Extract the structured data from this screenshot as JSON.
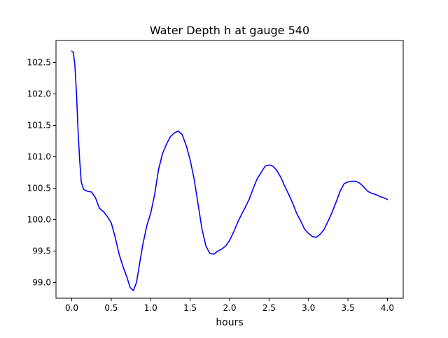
{
  "chart_data": {
    "type": "line",
    "title": "Water Depth h at gauge 540",
    "xlabel": "hours",
    "ylabel": "",
    "xlim": [
      -0.2,
      4.2
    ],
    "ylim": [
      98.75,
      102.85
    ],
    "grid": false,
    "legend": "none",
    "x_ticks": [
      {
        "value": 0.0,
        "label": "0.0"
      },
      {
        "value": 0.5,
        "label": "0.5"
      },
      {
        "value": 1.0,
        "label": "1.0"
      },
      {
        "value": 1.5,
        "label": "1.5"
      },
      {
        "value": 2.0,
        "label": "2.0"
      },
      {
        "value": 2.5,
        "label": "2.5"
      },
      {
        "value": 3.0,
        "label": "3.0"
      },
      {
        "value": 3.5,
        "label": "3.5"
      },
      {
        "value": 4.0,
        "label": "4.0"
      }
    ],
    "y_ticks": [
      {
        "value": 99.0,
        "label": "99.0"
      },
      {
        "value": 99.5,
        "label": "99.5"
      },
      {
        "value": 100.0,
        "label": "100.0"
      },
      {
        "value": 100.5,
        "label": "100.5"
      },
      {
        "value": 101.0,
        "label": "101.0"
      },
      {
        "value": 101.5,
        "label": "101.5"
      },
      {
        "value": 102.0,
        "label": "102.0"
      },
      {
        "value": 102.5,
        "label": "102.5"
      }
    ],
    "series": [
      {
        "color": "#0000ff",
        "points": [
          [
            0.0,
            102.68
          ],
          [
            0.02,
            102.66
          ],
          [
            0.04,
            102.45
          ],
          [
            0.06,
            102.0
          ],
          [
            0.08,
            101.4
          ],
          [
            0.1,
            100.95
          ],
          [
            0.12,
            100.6
          ],
          [
            0.15,
            100.48
          ],
          [
            0.2,
            100.45
          ],
          [
            0.25,
            100.44
          ],
          [
            0.3,
            100.35
          ],
          [
            0.35,
            100.18
          ],
          [
            0.4,
            100.13
          ],
          [
            0.45,
            100.05
          ],
          [
            0.5,
            99.95
          ],
          [
            0.55,
            99.72
          ],
          [
            0.6,
            99.45
          ],
          [
            0.65,
            99.25
          ],
          [
            0.7,
            99.08
          ],
          [
            0.74,
            98.92
          ],
          [
            0.78,
            98.87
          ],
          [
            0.82,
            99.0
          ],
          [
            0.86,
            99.3
          ],
          [
            0.9,
            99.6
          ],
          [
            0.95,
            99.9
          ],
          [
            1.0,
            100.1
          ],
          [
            1.05,
            100.4
          ],
          [
            1.1,
            100.8
          ],
          [
            1.15,
            101.05
          ],
          [
            1.2,
            101.2
          ],
          [
            1.25,
            101.32
          ],
          [
            1.3,
            101.38
          ],
          [
            1.35,
            101.41
          ],
          [
            1.4,
            101.35
          ],
          [
            1.45,
            101.18
          ],
          [
            1.5,
            100.95
          ],
          [
            1.55,
            100.65
          ],
          [
            1.6,
            100.25
          ],
          [
            1.65,
            99.85
          ],
          [
            1.7,
            99.58
          ],
          [
            1.75,
            99.46
          ],
          [
            1.8,
            99.45
          ],
          [
            1.85,
            99.5
          ],
          [
            1.9,
            99.53
          ],
          [
            1.95,
            99.58
          ],
          [
            2.0,
            99.67
          ],
          [
            2.05,
            99.8
          ],
          [
            2.1,
            99.95
          ],
          [
            2.15,
            100.08
          ],
          [
            2.2,
            100.2
          ],
          [
            2.25,
            100.33
          ],
          [
            2.3,
            100.5
          ],
          [
            2.35,
            100.65
          ],
          [
            2.4,
            100.75
          ],
          [
            2.45,
            100.85
          ],
          [
            2.5,
            100.87
          ],
          [
            2.55,
            100.85
          ],
          [
            2.6,
            100.78
          ],
          [
            2.65,
            100.67
          ],
          [
            2.7,
            100.53
          ],
          [
            2.75,
            100.4
          ],
          [
            2.8,
            100.26
          ],
          [
            2.85,
            100.1
          ],
          [
            2.9,
            99.98
          ],
          [
            2.95,
            99.85
          ],
          [
            3.0,
            99.78
          ],
          [
            3.05,
            99.73
          ],
          [
            3.1,
            99.72
          ],
          [
            3.15,
            99.77
          ],
          [
            3.2,
            99.85
          ],
          [
            3.25,
            99.98
          ],
          [
            3.3,
            100.12
          ],
          [
            3.35,
            100.28
          ],
          [
            3.4,
            100.45
          ],
          [
            3.45,
            100.57
          ],
          [
            3.5,
            100.6
          ],
          [
            3.55,
            100.61
          ],
          [
            3.6,
            100.61
          ],
          [
            3.65,
            100.58
          ],
          [
            3.7,
            100.52
          ],
          [
            3.75,
            100.45
          ],
          [
            3.8,
            100.42
          ],
          [
            3.85,
            100.4
          ],
          [
            3.9,
            100.37
          ],
          [
            3.95,
            100.35
          ],
          [
            4.0,
            100.32
          ]
        ]
      }
    ]
  }
}
